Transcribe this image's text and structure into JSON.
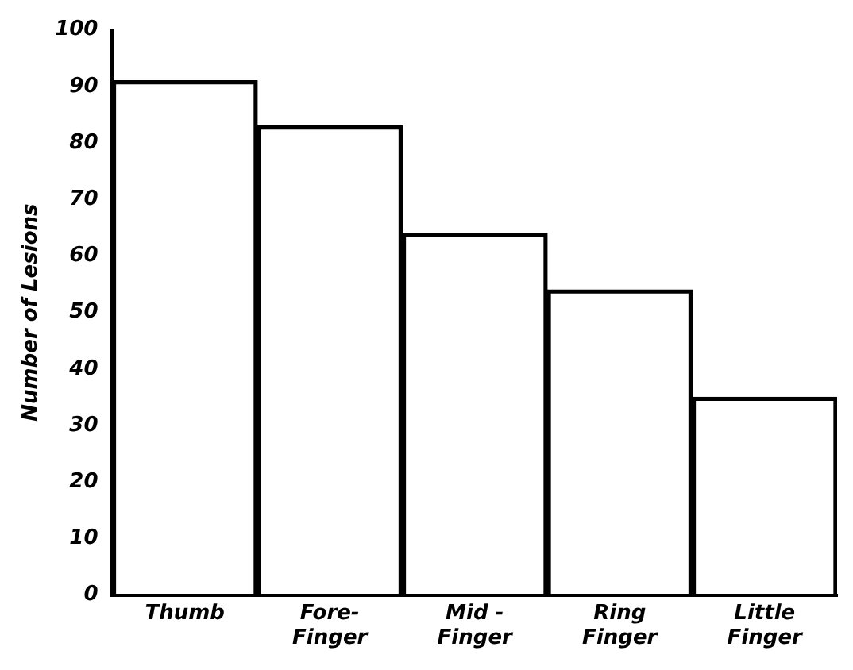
{
  "chart_data": {
    "type": "bar",
    "ylabel": "Number of Lesions",
    "categories": [
      "Thumb",
      "Fore-\nFinger",
      "Mid -\nFinger",
      "Ring\nFinger",
      "Little\nFinger"
    ],
    "values": [
      91,
      83,
      64,
      54,
      35
    ],
    "color": "#000000",
    "ylim": [
      0,
      100
    ],
    "yticks": [
      0,
      10,
      20,
      30,
      40,
      50,
      60,
      70,
      80,
      90,
      100
    ],
    "grid": false
  }
}
